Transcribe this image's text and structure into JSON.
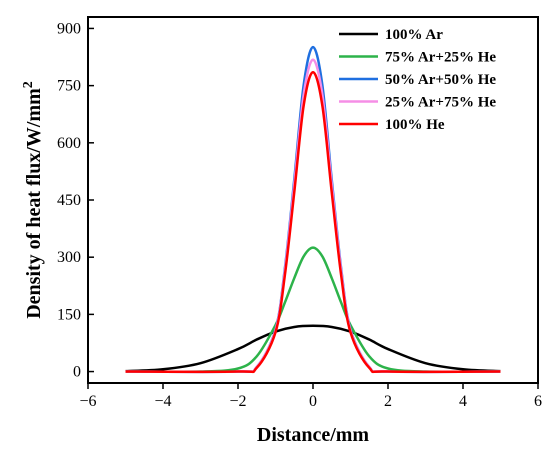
{
  "chart_data": {
    "type": "line",
    "xlabel": "Distance/mm",
    "ylabel": "Density of heat flux/W/mm",
    "ylabel_sup": "2",
    "xlim": [
      -6,
      6
    ],
    "ylim": [
      -30,
      930
    ],
    "xticks": [
      -6,
      -4,
      -2,
      0,
      2,
      4,
      6
    ],
    "xtick_labels": [
      "−6",
      "−4",
      "−2",
      "0",
      "2",
      "4",
      "6"
    ],
    "yticks": [
      0,
      150,
      300,
      450,
      600,
      750,
      900
    ],
    "ytick_labels": [
      "0",
      "150",
      "300",
      "450",
      "600",
      "750",
      "900"
    ],
    "grid": false,
    "legend_position": "top-right",
    "series": [
      {
        "name": "100% Ar",
        "color": "#000000",
        "x": [
          -5,
          -4,
          -3,
          -2,
          -1.5,
          -1,
          -0.5,
          0,
          0.5,
          1,
          1.5,
          2,
          3,
          4,
          5
        ],
        "y": [
          1,
          6,
          22,
          59,
          84,
          105,
          117,
          120,
          117,
          105,
          84,
          59,
          22,
          6,
          1
        ]
      },
      {
        "name": "75% Ar+25% He",
        "color": "#2db34a",
        "x": [
          -5,
          -3,
          -2,
          -1.5,
          -1,
          -0.75,
          -0.5,
          -0.25,
          0,
          0.25,
          0.5,
          0.75,
          1,
          1.5,
          2,
          3,
          5
        ],
        "y": [
          0,
          0,
          8,
          40,
          122,
          181,
          245,
          302,
          325,
          302,
          245,
          181,
          122,
          40,
          8,
          0,
          0
        ]
      },
      {
        "name": "50% Ar+50% He",
        "color": "#1f6fe0",
        "x": [
          -5,
          -2,
          -1.5,
          -1,
          -0.75,
          -0.5,
          -0.25,
          0,
          0.25,
          0.5,
          0.75,
          1,
          1.5,
          2,
          5
        ],
        "y": [
          0,
          0,
          12,
          110,
          271,
          503,
          751,
          851,
          751,
          503,
          271,
          110,
          12,
          0,
          0
        ]
      },
      {
        "name": "25% Ar+75% He",
        "color": "#f58ee6",
        "x": [
          -5,
          -2,
          -1.5,
          -1,
          -0.75,
          -0.5,
          -0.25,
          0,
          0.25,
          0.5,
          0.75,
          1,
          1.5,
          2,
          5
        ],
        "y": [
          0,
          0,
          12,
          108,
          265,
          490,
          725,
          818,
          725,
          490,
          265,
          108,
          12,
          0,
          0
        ]
      },
      {
        "name": "100% He",
        "color": "#ff0000",
        "x": [
          -5,
          -2,
          -1.5,
          -1,
          -0.75,
          -0.5,
          -0.25,
          0,
          0.25,
          0.5,
          0.75,
          1,
          1.5,
          2,
          5
        ],
        "y": [
          0,
          0,
          10,
          103,
          253,
          470,
          697,
          785,
          697,
          470,
          253,
          103,
          10,
          0,
          0
        ]
      }
    ]
  }
}
